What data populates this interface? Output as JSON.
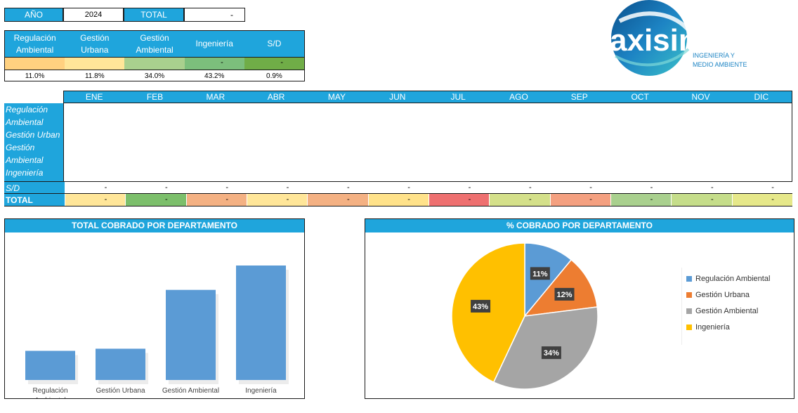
{
  "header": {
    "year_label": "AÑO",
    "year_value": "2024",
    "total_label": "TOTAL",
    "total_value": "-"
  },
  "logo": {
    "brand": "axisima",
    "line1": "INGENIERÍA Y",
    "line2": "MEDIO AMBIENTE"
  },
  "summary": {
    "departments": [
      {
        "label_line1": "Regulación",
        "label_line2": "Ambiental",
        "color": "#ffd180",
        "value": "",
        "pct": "11.0%"
      },
      {
        "label_line1": "Gestión",
        "label_line2": "Urbana",
        "color": "#ffe699",
        "value": "",
        "pct": "11.8%"
      },
      {
        "label_line1": "Gestión",
        "label_line2": "Ambiental",
        "color": "#a9d08e",
        "value": "",
        "pct": "34.0%"
      },
      {
        "label_line1": "Ingeniería",
        "label_line2": "",
        "color": "#7cbf7c",
        "value": "-",
        "pct": "43.2%"
      },
      {
        "label_line1": "S/D",
        "label_line2": "",
        "color": "#70ad47",
        "value": "-",
        "pct": "0.9%"
      }
    ]
  },
  "monthly": {
    "months": [
      "ENE",
      "FEB",
      "MAR",
      "ABR",
      "MAY",
      "JUN",
      "JUL",
      "AGO",
      "SEP",
      "OCT",
      "NOV",
      "DIC"
    ],
    "row_labels": [
      "Regulación",
      "Ambiental",
      "Gestión Urban",
      "Gestión",
      "Ambiental",
      "Ingeniería"
    ],
    "sd_label": "S/D",
    "sd_values": [
      "-",
      "-",
      "-",
      "-",
      "-",
      "-",
      "-",
      "-",
      "-",
      "-",
      "-",
      "-"
    ],
    "total_label": "TOTAL",
    "total_values": [
      "-",
      "-",
      "-",
      "-",
      "-",
      "-",
      "-",
      "-",
      "-",
      "-",
      "-",
      "-"
    ],
    "total_colors": [
      "#ffe699",
      "#7cbf6b",
      "#f4b183",
      "#ffe699",
      "#f4b183",
      "#ffe28a",
      "#ee7070",
      "#d4e08a",
      "#f4a080",
      "#a9d08e",
      "#c5dd8a",
      "#e6e88a"
    ]
  },
  "chart_data": [
    {
      "type": "bar",
      "title": "TOTAL COBRADO POR DEPARTAMENTO",
      "categories": [
        "Regulación Ambiental",
        "Gestión Urbana",
        "Gestión Ambiental",
        "Ingeniería"
      ],
      "category_lines": [
        [
          "Regulación",
          "Ambiental"
        ],
        [
          "Gestión Urbana"
        ],
        [
          "Gestión Ambiental"
        ],
        [
          "Ingeniería"
        ]
      ],
      "values": [
        11.0,
        11.8,
        34.0,
        43.2
      ],
      "ylim": [
        0,
        43.2
      ],
      "color": "#5b9bd5"
    },
    {
      "type": "pie",
      "title": "% COBRADO POR DEPARTAMENTO",
      "labels": [
        "Regulación Ambiental",
        "Gestión Urbana",
        "Gestión Ambiental",
        "Ingeniería"
      ],
      "values": [
        11,
        12,
        34,
        43
      ],
      "data_labels": [
        "11%",
        "12%",
        "34%",
        "43%"
      ],
      "colors": [
        "#5b9bd5",
        "#ed7d31",
        "#a5a5a5",
        "#ffc000"
      ],
      "legend": "right"
    }
  ]
}
